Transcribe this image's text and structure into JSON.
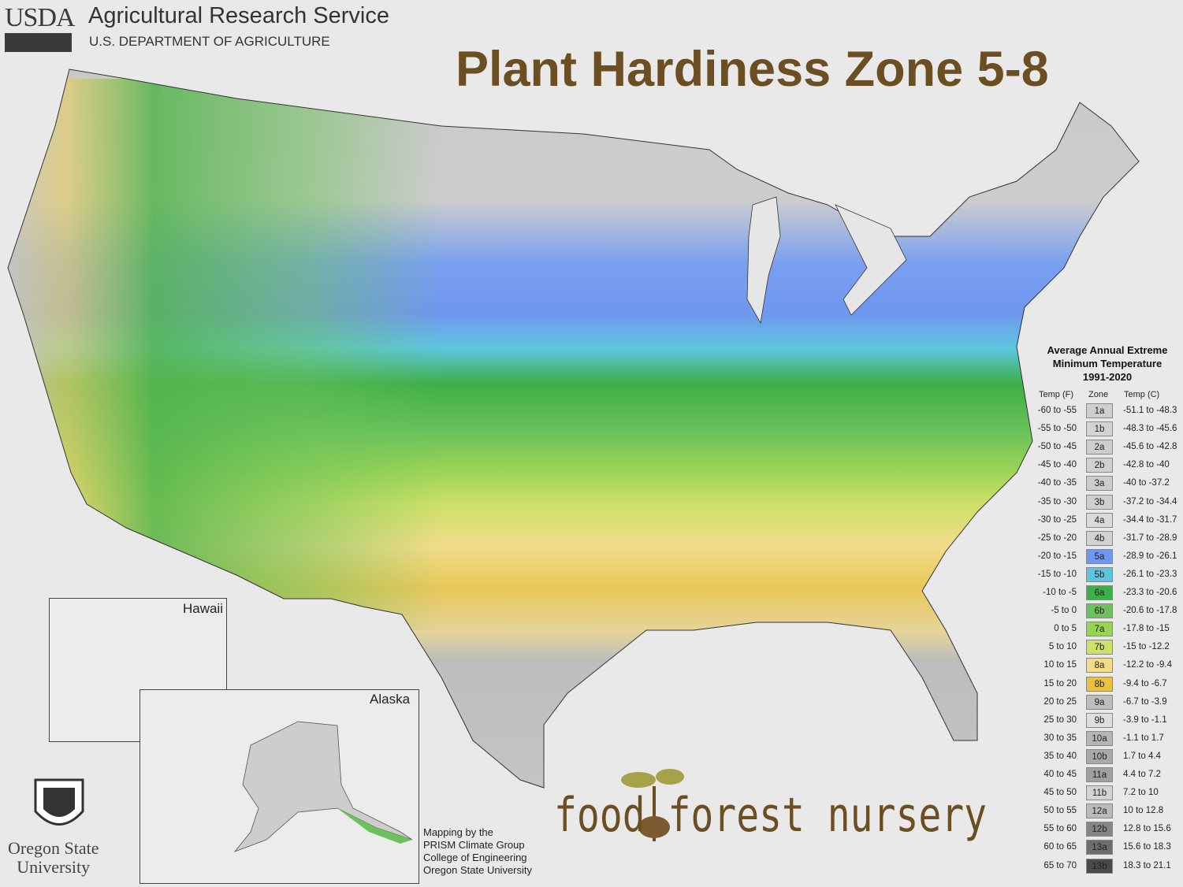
{
  "header": {
    "logo_text": "USDA",
    "agency": "Agricultural Research Service",
    "department": "U.S. DEPARTMENT OF AGRICULTURE"
  },
  "title": "Plant Hardiness Zone 5-8",
  "legend": {
    "title_line1": "Average Annual Extreme",
    "title_line2": "Minimum Temperature",
    "title_line3": "1991-2020",
    "col_f": "Temp (F)",
    "col_zone": "Zone",
    "col_c": "Temp (C)",
    "rows": [
      {
        "f": "-60 to -55",
        "zone": "1a",
        "c": "-51.1 to -48.3",
        "color": "#cfcfcf"
      },
      {
        "f": "-55 to -50",
        "zone": "1b",
        "c": "-48.3 to -45.6",
        "color": "#d3d3d3"
      },
      {
        "f": "-50 to -45",
        "zone": "2a",
        "c": "-45.6 to -42.8",
        "color": "#cdcdcd"
      },
      {
        "f": "-45 to -40",
        "zone": "2b",
        "c": "-42.8 to -40",
        "color": "#d0d0d0"
      },
      {
        "f": "-40 to -35",
        "zone": "3a",
        "c": "-40 to -37.2",
        "color": "#cccccc"
      },
      {
        "f": "-35 to -30",
        "zone": "3b",
        "c": "-37.2 to -34.4",
        "color": "#cfcfcf"
      },
      {
        "f": "-30 to -25",
        "zone": "4a",
        "c": "-34.4 to -31.7",
        "color": "#dadada"
      },
      {
        "f": "-25 to -20",
        "zone": "4b",
        "c": "-31.7 to -28.9",
        "color": "#d2d2d2"
      },
      {
        "f": "-20 to -15",
        "zone": "5a",
        "c": "-28.9 to -26.1",
        "color": "#6f97f0"
      },
      {
        "f": "-15 to -10",
        "zone": "5b",
        "c": "-26.1 to -23.3",
        "color": "#5cc6e0"
      },
      {
        "f": "-10 to -5",
        "zone": "6a",
        "c": "-23.3 to -20.6",
        "color": "#3eae48"
      },
      {
        "f": "-5 to 0",
        "zone": "6b",
        "c": "-20.6 to -17.8",
        "color": "#6cc25a"
      },
      {
        "f": "0 to 5",
        "zone": "7a",
        "c": "-17.8 to -15",
        "color": "#98d356"
      },
      {
        "f": "5 to 10",
        "zone": "7b",
        "c": "-15 to -12.2",
        "color": "#cde067"
      },
      {
        "f": "10 to 15",
        "zone": "8a",
        "c": "-12.2 to -9.4",
        "color": "#f2dc8a"
      },
      {
        "f": "15 to 20",
        "zone": "8b",
        "c": "-9.4 to -6.7",
        "color": "#e8c240"
      },
      {
        "f": "20 to 25",
        "zone": "9a",
        "c": "-6.7 to -3.9",
        "color": "#bdbdbd"
      },
      {
        "f": "25 to 30",
        "zone": "9b",
        "c": "-3.9 to -1.1",
        "color": "#dedede"
      },
      {
        "f": "30 to 35",
        "zone": "10a",
        "c": "-1.1 to 1.7",
        "color": "#b5b5b5"
      },
      {
        "f": "35 to 40",
        "zone": "10b",
        "c": "1.7 to 4.4",
        "color": "#a9a9a9"
      },
      {
        "f": "40 to 45",
        "zone": "11a",
        "c": "4.4 to 7.2",
        "color": "#a0a0a0"
      },
      {
        "f": "45 to 50",
        "zone": "11b",
        "c": "7.2 to 10",
        "color": "#d3d3d3"
      },
      {
        "f": "50 to 55",
        "zone": "12a",
        "c": "10 to 12.8",
        "color": "#bababa"
      },
      {
        "f": "55 to 60",
        "zone": "12b",
        "c": "12.8 to 15.6",
        "color": "#858585"
      },
      {
        "f": "60 to 65",
        "zone": "13a",
        "c": "15.6 to 18.3",
        "color": "#6d6d6d"
      },
      {
        "f": "65 to 70",
        "zone": "13b",
        "c": "18.3 to 21.1",
        "color": "#4a4a4a"
      }
    ]
  },
  "insets": {
    "hawaii": "Hawaii",
    "alaska": "Alaska"
  },
  "credit": {
    "line1": "Mapping by the",
    "line2": "PRISM Climate Group",
    "line3": "College of Engineering",
    "line4": "Oregon State University"
  },
  "osu": {
    "line1": "Oregon State",
    "line2": "University"
  },
  "nursery_logo": "food forest nursery",
  "colors": {
    "title": "#6b4e22",
    "background": "#e9e9e9"
  }
}
